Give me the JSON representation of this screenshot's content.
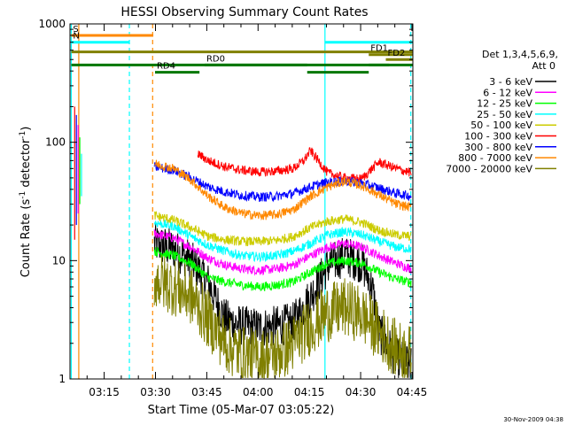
{
  "chart_data": {
    "type": "line",
    "title": "HESSI Observing Summary Count Rates",
    "xlabel": "Start Time (05-Mar-07 03:05:22)",
    "ylabel_main": "Count Rate (s",
    "ylabel_sup1": "-1",
    "ylabel_mid": " detector",
    "ylabel_sup2": "-1",
    "ylabel_end": ")",
    "yscale": "log",
    "xlim_minutes": [
      -0.37,
      99.9
    ],
    "ylim": [
      1,
      1000
    ],
    "x_ticks": [
      {
        "label": "03:15",
        "minute": 9.63
      },
      {
        "label": "03:30",
        "minute": 24.63
      },
      {
        "label": "03:45",
        "minute": 39.63
      },
      {
        "label": "04:00",
        "minute": 54.63
      },
      {
        "label": "04:15",
        "minute": 69.63
      },
      {
        "label": "04:30",
        "minute": 84.63
      },
      {
        "label": "04:45",
        "minute": 99.63
      }
    ],
    "y_ticks": [
      {
        "label": "1",
        "value": 1
      },
      {
        "label": "10",
        "value": 10
      },
      {
        "label": "100",
        "value": 100
      },
      {
        "label": "1000",
        "value": 1000
      }
    ],
    "legend_header_1": "Det 1,3,4,5,6,9,",
    "legend_header_2": "Att 0",
    "legend_position": "right",
    "legend": [
      {
        "label": "3 - 6 keV",
        "color": "#000000"
      },
      {
        "label": "6 - 12 keV",
        "color": "#ff00ff"
      },
      {
        "label": "12 - 25 keV",
        "color": "#00ff00"
      },
      {
        "label": "25 - 50 keV",
        "color": "#00ffff"
      },
      {
        "label": "50 - 100 keV",
        "color": "#cccc00"
      },
      {
        "label": "100 - 300 keV",
        "color": "#ff0000"
      },
      {
        "label": "300 - 800 keV",
        "color": "#0000ff"
      },
      {
        "label": "800 - 7000 keV",
        "color": "#ff8800"
      },
      {
        "label": "7000 - 20000 keV",
        "color": "#808000"
      }
    ],
    "series": [
      {
        "name": "3 - 6 keV",
        "color": "#000000",
        "points": [
          [
            24.3,
            14.0
          ],
          [
            30,
            12.5
          ],
          [
            35,
            10.0
          ],
          [
            40,
            6.5
          ],
          [
            45,
            3.2
          ],
          [
            50,
            2.8
          ],
          [
            55,
            2.7
          ],
          [
            60,
            2.8
          ],
          [
            65,
            3.0
          ],
          [
            70,
            5.0
          ],
          [
            75,
            9.0
          ],
          [
            80,
            11.0
          ],
          [
            85,
            9.5
          ],
          [
            88,
            6.0
          ],
          [
            90,
            2.5
          ],
          [
            95,
            1.5
          ],
          [
            99.5,
            1.3
          ]
        ]
      },
      {
        "name": "6 - 12 keV",
        "color": "#ff00ff",
        "points": [
          [
            24.3,
            17.0
          ],
          [
            30,
            15.5
          ],
          [
            35,
            13.0
          ],
          [
            40,
            10.5
          ],
          [
            45,
            9.2
          ],
          [
            50,
            8.5
          ],
          [
            55,
            8.3
          ],
          [
            60,
            8.5
          ],
          [
            65,
            9.2
          ],
          [
            70,
            11.0
          ],
          [
            75,
            13.0
          ],
          [
            80,
            14.0
          ],
          [
            85,
            13.0
          ],
          [
            90,
            11.0
          ],
          [
            95,
            9.5
          ],
          [
            99.5,
            8.5
          ]
        ]
      },
      {
        "name": "12 - 25 keV",
        "color": "#00ff00",
        "points": [
          [
            24.3,
            12.0
          ],
          [
            30,
            11.0
          ],
          [
            35,
            9.5
          ],
          [
            40,
            7.2
          ],
          [
            45,
            6.6
          ],
          [
            50,
            6.2
          ],
          [
            55,
            6.0
          ],
          [
            60,
            6.2
          ],
          [
            65,
            6.6
          ],
          [
            70,
            8.0
          ],
          [
            75,
            9.5
          ],
          [
            80,
            10.0
          ],
          [
            85,
            9.5
          ],
          [
            90,
            8.0
          ],
          [
            95,
            7.0
          ],
          [
            99.5,
            6.5
          ]
        ]
      },
      {
        "name": "25 - 50 keV",
        "color": "#00ffff",
        "points": [
          [
            24.3,
            21.0
          ],
          [
            30,
            19.5
          ],
          [
            35,
            16.0
          ],
          [
            40,
            13.5
          ],
          [
            45,
            12.0
          ],
          [
            50,
            11.0
          ],
          [
            55,
            10.8
          ],
          [
            60,
            11.0
          ],
          [
            65,
            12.0
          ],
          [
            70,
            14.0
          ],
          [
            75,
            16.5
          ],
          [
            80,
            17.5
          ],
          [
            85,
            16.5
          ],
          [
            90,
            14.5
          ],
          [
            95,
            13.0
          ],
          [
            99.5,
            12.5
          ]
        ]
      },
      {
        "name": "50 - 100 keV",
        "color": "#cccc00",
        "points": [
          [
            24.3,
            24.0
          ],
          [
            30,
            22.0
          ],
          [
            35,
            19.0
          ],
          [
            40,
            16.0
          ],
          [
            45,
            15.0
          ],
          [
            50,
            14.5
          ],
          [
            55,
            14.5
          ],
          [
            60,
            14.8
          ],
          [
            65,
            16.0
          ],
          [
            70,
            19.0
          ],
          [
            75,
            21.5
          ],
          [
            80,
            22.5
          ],
          [
            85,
            21.0
          ],
          [
            90,
            18.0
          ],
          [
            95,
            16.5
          ],
          [
            99.5,
            16.0
          ]
        ]
      },
      {
        "name": "100 - 300 keV",
        "color": "#ff0000",
        "points": [
          [
            37,
            80.0
          ],
          [
            40,
            70.0
          ],
          [
            45,
            62.0
          ],
          [
            50,
            58.0
          ],
          [
            55,
            56.0
          ],
          [
            60,
            57.0
          ],
          [
            65,
            60.0
          ],
          [
            68,
            70.0
          ],
          [
            70,
            85.0
          ],
          [
            75,
            55.0
          ],
          [
            80,
            50.0
          ],
          [
            85,
            49.0
          ],
          [
            88,
            60.0
          ],
          [
            90,
            68.0
          ],
          [
            95,
            60.0
          ],
          [
            99.5,
            55.0
          ]
        ]
      },
      {
        "name": "300 - 800 keV",
        "color": "#0000ff",
        "points": [
          [
            24.3,
            62.0
          ],
          [
            30,
            58.0
          ],
          [
            35,
            50.0
          ],
          [
            40,
            42.0
          ],
          [
            45,
            38.0
          ],
          [
            50,
            35.5
          ],
          [
            55,
            34.5
          ],
          [
            60,
            35.0
          ],
          [
            65,
            37.0
          ],
          [
            70,
            42.0
          ],
          [
            75,
            46.0
          ],
          [
            80,
            47.0
          ],
          [
            85,
            45.0
          ],
          [
            90,
            41.0
          ],
          [
            95,
            37.0
          ],
          [
            99.5,
            35.0
          ]
        ]
      },
      {
        "name": "800 - 7000 keV",
        "color": "#ff8800",
        "points": [
          [
            24.3,
            66.0
          ],
          [
            30,
            60.0
          ],
          [
            35,
            48.0
          ],
          [
            40,
            35.0
          ],
          [
            45,
            28.0
          ],
          [
            50,
            25.0
          ],
          [
            55,
            24.0
          ],
          [
            60,
            24.5
          ],
          [
            65,
            27.0
          ],
          [
            70,
            35.0
          ],
          [
            75,
            42.0
          ],
          [
            80,
            47.0
          ],
          [
            85,
            43.0
          ],
          [
            90,
            36.0
          ],
          [
            95,
            30.0
          ],
          [
            99.5,
            28.0
          ]
        ]
      },
      {
        "name": "7000 - 20000 keV",
        "color": "#808000",
        "points": [
          [
            24.3,
            7.0
          ],
          [
            30,
            6.0
          ],
          [
            35,
            5.0
          ],
          [
            40,
            3.2
          ],
          [
            45,
            2.0
          ],
          [
            50,
            1.6
          ],
          [
            55,
            1.5
          ],
          [
            60,
            1.6
          ],
          [
            65,
            2.0
          ],
          [
            70,
            2.8
          ],
          [
            75,
            3.6
          ],
          [
            80,
            4.0
          ],
          [
            85,
            3.5
          ],
          [
            90,
            2.5
          ],
          [
            95,
            1.8
          ],
          [
            99.5,
            1.6
          ]
        ]
      }
    ],
    "early_spike_colors": [
      "#ff0000",
      "#0000ff",
      "#ff00ff",
      "#00ff00",
      "#00ffff"
    ],
    "vertical_markers": [
      {
        "minute": 0.0,
        "color": "#00ffff",
        "style": "solid"
      },
      {
        "minute": 2.2,
        "color": "#ff8800",
        "style": "solid"
      },
      {
        "minute": 17.0,
        "color": "#00ffff",
        "style": "dashed"
      },
      {
        "minute": 23.8,
        "color": "#ff8800",
        "style": "dashed"
      },
      {
        "minute": 74.2,
        "color": "#00ffff",
        "style": "solid"
      },
      {
        "minute": 99.3,
        "color": "#00ffff",
        "style": "dashed"
      }
    ],
    "flag_bars": [
      {
        "label": "S",
        "color": "#ff8800",
        "start": 0.0,
        "end": 24.0,
        "y_value": 800
      },
      {
        "label": "N",
        "color": "#00ffff",
        "start": 0.0,
        "end": 17.0,
        "y_value": 700
      },
      {
        "label": "",
        "color": "#00ffff",
        "start": 74.2,
        "end": 99.9,
        "y_value": 700
      },
      {
        "label": "",
        "color": "#808000",
        "start": 0.0,
        "end": 99.9,
        "y_value": 580
      },
      {
        "label": "FD1",
        "color": "#808000",
        "start": 87.0,
        "end": 99.9,
        "y_value": 550
      },
      {
        "label": "FD2",
        "color": "#808000",
        "start": 92.0,
        "end": 99.9,
        "y_value": 500
      },
      {
        "label": "",
        "color": "#007700",
        "start": 0.0,
        "end": 99.9,
        "y_value": 450
      },
      {
        "label": "RD4",
        "color": "#007700",
        "start": 24.5,
        "end": 37.5,
        "y_value": 390
      },
      {
        "label": "RD0",
        "color": "#007700",
        "start": 39.0,
        "end": 69.0,
        "y_value": 450
      },
      {
        "label": "",
        "color": "#007700",
        "start": 69.0,
        "end": 87.0,
        "y_value": 390
      },
      {
        "label": "",
        "color": "#007700",
        "start": 87.0,
        "end": 93.0,
        "y_value": 450
      }
    ],
    "footer_date": "30-Nov-2009 04:38"
  }
}
